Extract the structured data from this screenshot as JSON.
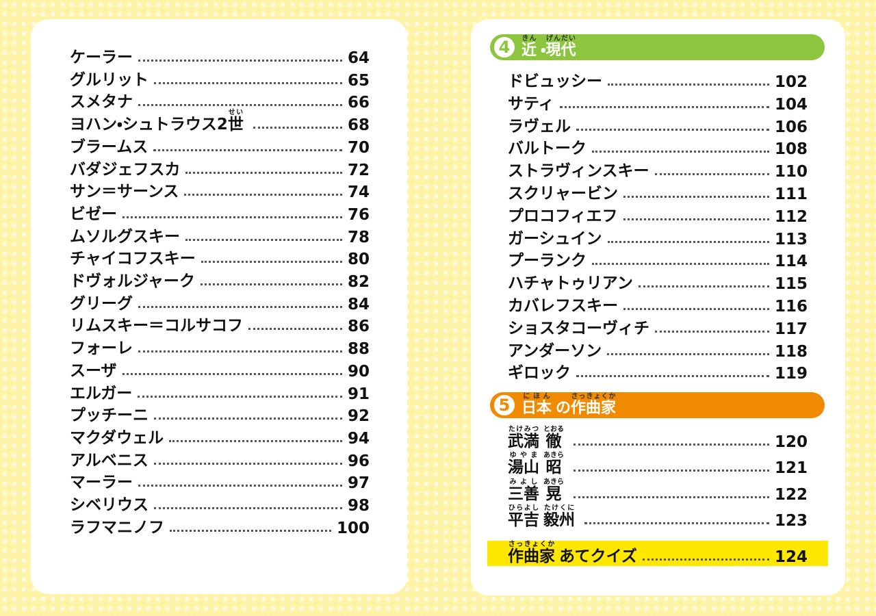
{
  "left": {
    "entries": [
      {
        "name": "ケーラー",
        "page": "64"
      },
      {
        "name": "グルリット",
        "page": "65"
      },
      {
        "name": "スメタナ",
        "page": "66"
      },
      {
        "name": [
          {
            "text": "ヨハン・シュトラウス2"
          },
          {
            "text": "世",
            "ruby": "せい"
          }
        ],
        "page": "68"
      },
      {
        "name": "ブラームス",
        "page": "70"
      },
      {
        "name": "バダジェフスカ",
        "page": "72"
      },
      {
        "name": "サン＝サーンス",
        "page": "74"
      },
      {
        "name": "ビゼー",
        "page": "76"
      },
      {
        "name": "ムソルグスキー",
        "page": "78"
      },
      {
        "name": "チャイコフスキー",
        "page": "80"
      },
      {
        "name": "ドヴォルジャーク",
        "page": "82"
      },
      {
        "name": "グリーグ",
        "page": "84"
      },
      {
        "name": "リムスキー＝コルサコフ",
        "page": "86"
      },
      {
        "name": "フォーレ",
        "page": "88"
      },
      {
        "name": "スーザ",
        "page": "90"
      },
      {
        "name": "エルガー",
        "page": "91"
      },
      {
        "name": "プッチーニ",
        "page": "92"
      },
      {
        "name": "マクダウェル",
        "page": "94"
      },
      {
        "name": "アルベニス",
        "page": "96"
      },
      {
        "name": "マーラー",
        "page": "97"
      },
      {
        "name": "シベリウス",
        "page": "98"
      },
      {
        "name": "ラフマニノフ",
        "page": "100"
      }
    ]
  },
  "sections": [
    {
      "number": "4",
      "title": [
        {
          "text": "近",
          "ruby": "きん"
        },
        {
          "text": "・"
        },
        {
          "text": "現代",
          "ruby": "げんだい"
        }
      ],
      "entries": [
        {
          "name": "ドビュッシー",
          "page": "102"
        },
        {
          "name": "サティ",
          "page": "104"
        },
        {
          "name": "ラヴェル",
          "page": "106"
        },
        {
          "name": "バルトーク",
          "page": "108"
        },
        {
          "name": "ストラヴィンスキー",
          "page": "110"
        },
        {
          "name": "スクリャービン",
          "page": "111"
        },
        {
          "name": "プロコフィエフ",
          "page": "112"
        },
        {
          "name": "ガーシュイン",
          "page": "113"
        },
        {
          "name": "プーランク",
          "page": "114"
        },
        {
          "name": "ハチャトゥリアン",
          "page": "115"
        },
        {
          "name": "カバレフスキー",
          "page": "116"
        },
        {
          "name": "ショスタコーヴィチ",
          "page": "117"
        },
        {
          "name": "アンダーソン",
          "page": "118"
        },
        {
          "name": "ギロック",
          "page": "119"
        }
      ]
    },
    {
      "number": "5",
      "title": [
        {
          "text": "日本",
          "ruby": "にほん"
        },
        {
          "text": "の"
        },
        {
          "text": "作曲家",
          "ruby": "さっきょくか"
        }
      ],
      "entries": [
        {
          "name": [
            {
              "text": "武満",
              "ruby": "たけみつ"
            },
            {
              "text": "徹",
              "ruby": "とおる"
            }
          ],
          "page": "120"
        },
        {
          "name": [
            {
              "text": "湯山",
              "ruby": "ゆやま"
            },
            {
              "text": "昭",
              "ruby": "あきら"
            }
          ],
          "page": "121"
        },
        {
          "name": [
            {
              "text": "三善",
              "ruby": "みよし"
            },
            {
              "text": "晃",
              "ruby": "あきら"
            }
          ],
          "page": "122"
        },
        {
          "name": [
            {
              "text": "平吉",
              "ruby": "ひらよし"
            },
            {
              "text": "毅州",
              "ruby": "たけくに"
            }
          ],
          "page": "123"
        }
      ]
    }
  ],
  "quiz": {
    "name": [
      {
        "text": "作曲家",
        "ruby": "さっきょくか"
      },
      {
        "text": "あてクイズ"
      }
    ],
    "page": "124"
  }
}
